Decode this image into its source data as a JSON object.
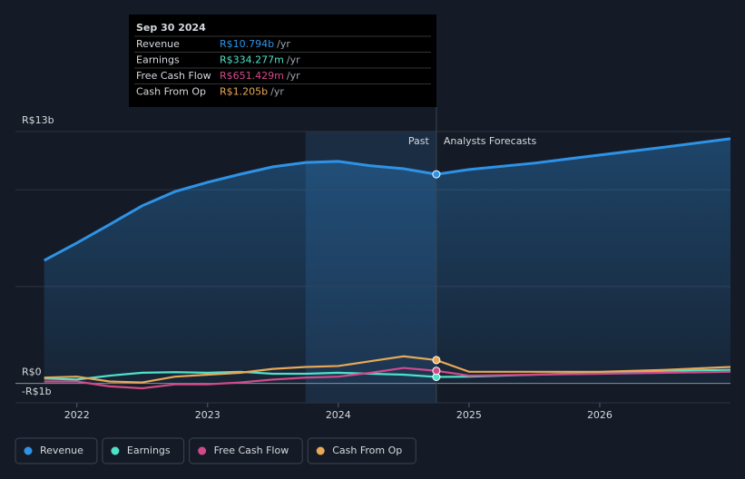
{
  "chart_data": {
    "type": "line",
    "x": [
      2021.75,
      2022.0,
      2022.25,
      2022.5,
      2022.75,
      2023.0,
      2023.25,
      2023.5,
      2023.75,
      2024.0,
      2024.25,
      2024.5,
      2024.75,
      2025.0,
      2025.5,
      2026.0,
      2026.5,
      2027.0
    ],
    "series": [
      {
        "name": "Revenue",
        "color": "#2e93e6",
        "values": [
          6.35,
          7.25,
          8.2,
          9.17,
          9.9,
          10.38,
          10.8,
          11.18,
          11.4,
          11.46,
          11.23,
          11.08,
          10.794,
          11.04,
          11.37,
          11.79,
          12.2,
          12.63
        ]
      },
      {
        "name": "Earnings",
        "color": "#4fe0c8",
        "values": [
          0.25,
          0.2,
          0.4,
          0.55,
          0.58,
          0.55,
          0.6,
          0.5,
          0.5,
          0.55,
          0.5,
          0.45,
          0.334277,
          0.35,
          0.45,
          0.55,
          0.65,
          0.7
        ]
      },
      {
        "name": "Free Cash Flow",
        "color": "#d04a8a",
        "values": [
          0.1,
          0.1,
          -0.15,
          -0.25,
          -0.05,
          -0.05,
          0.05,
          0.2,
          0.3,
          0.35,
          0.55,
          0.8,
          0.651429,
          0.4,
          0.45,
          0.5,
          0.55,
          0.6
        ]
      },
      {
        "name": "Cash From Op",
        "color": "#e8a857",
        "values": [
          0.3,
          0.35,
          0.1,
          0.05,
          0.35,
          0.45,
          0.55,
          0.75,
          0.85,
          0.9,
          1.15,
          1.4,
          1.205,
          0.6,
          0.6,
          0.6,
          0.7,
          0.85
        ]
      }
    ],
    "xlim": [
      2021.53,
      2027.0
    ],
    "xticks": [
      2022,
      2023,
      2024,
      2025,
      2026
    ],
    "ylim": [
      -1,
      13
    ],
    "yticks": [
      {
        "value": -1,
        "label": "-R$1b"
      },
      {
        "value": 0,
        "label": "R$0"
      },
      {
        "value": 13,
        "label": "R$13b"
      }
    ],
    "minor_gridlines": [
      5,
      10
    ],
    "past_label": "Past",
    "forecast_label": "Analysts Forecasts",
    "past_start": 2023.75,
    "divider": 2024.75,
    "tooltip": {
      "date": "Sep 30 2024",
      "rows": [
        {
          "label": "Revenue",
          "value": "R$10.794b",
          "unit": "/yr"
        },
        {
          "label": "Earnings",
          "value": "R$334.277m",
          "unit": "/yr"
        },
        {
          "label": "Free Cash Flow",
          "value": "R$651.429m",
          "unit": "/yr"
        },
        {
          "label": "Cash From Op",
          "value": "R$1.205b",
          "unit": "/yr"
        }
      ]
    }
  }
}
